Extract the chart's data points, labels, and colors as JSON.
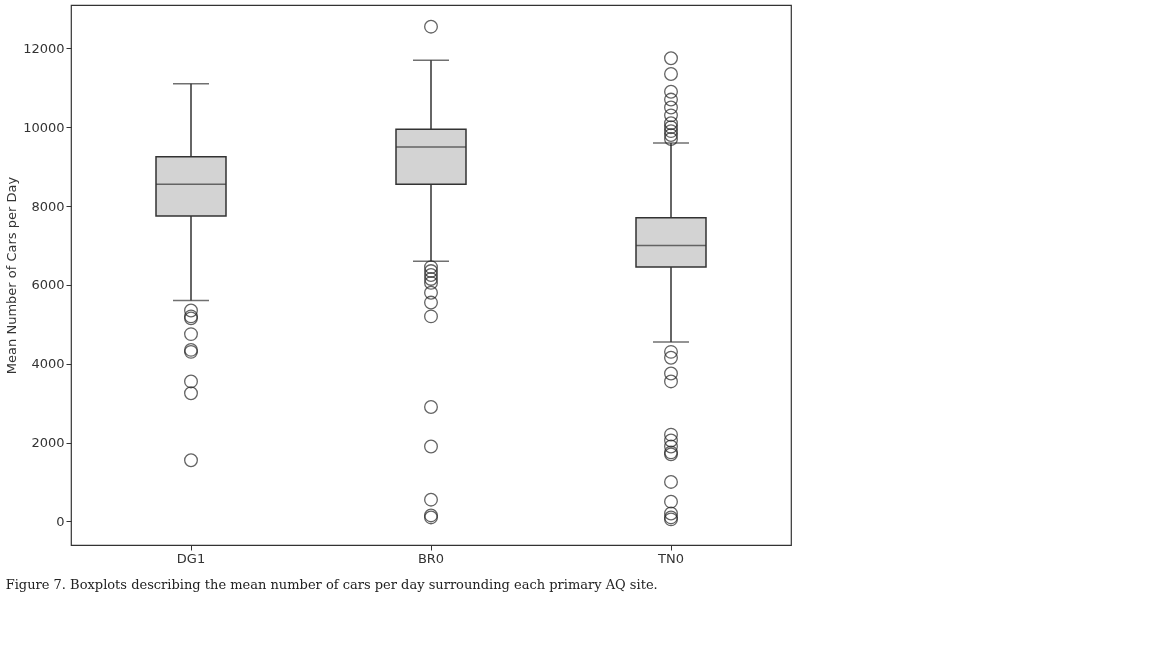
{
  "chart_data": {
    "type": "box",
    "ylabel": "Mean Number of Cars per Day",
    "categories": [
      "DG1",
      "BR0",
      "TN0"
    ],
    "boxes": [
      {
        "low": 5600,
        "q1": 7750,
        "median": 8550,
        "q3": 9250,
        "high": 11100,
        "outliers": [
          5350,
          5200,
          5150,
          4750,
          4350,
          4300,
          3550,
          3250,
          1550
        ]
      },
      {
        "low": 6600,
        "q1": 8550,
        "median": 9500,
        "q3": 9950,
        "high": 11700,
        "outliers": [
          12550,
          6450,
          6350,
          6250,
          6150,
          6050,
          5800,
          5550,
          5200,
          2900,
          1900,
          550,
          150,
          100
        ]
      },
      {
        "low": 4550,
        "q1": 6450,
        "median": 7000,
        "q3": 7700,
        "high": 9600,
        "outliers": [
          11750,
          11350,
          10900,
          10700,
          10500,
          10300,
          10100,
          10000,
          9900,
          9800,
          9700,
          4300,
          4150,
          3750,
          3550,
          2200,
          2050,
          1900,
          1750,
          1700,
          1000,
          500,
          200,
          100,
          50
        ]
      }
    ],
    "color": "#d3d3d3",
    "ylim": [
      -600,
      13100
    ],
    "yticks": [
      0,
      2000,
      4000,
      6000,
      8000,
      10000,
      12000
    ],
    "grid": false,
    "annotations": [
      "Figure 7. Boxplots describing the mean number of cars per day surrounding each primary AQ site."
    ]
  }
}
